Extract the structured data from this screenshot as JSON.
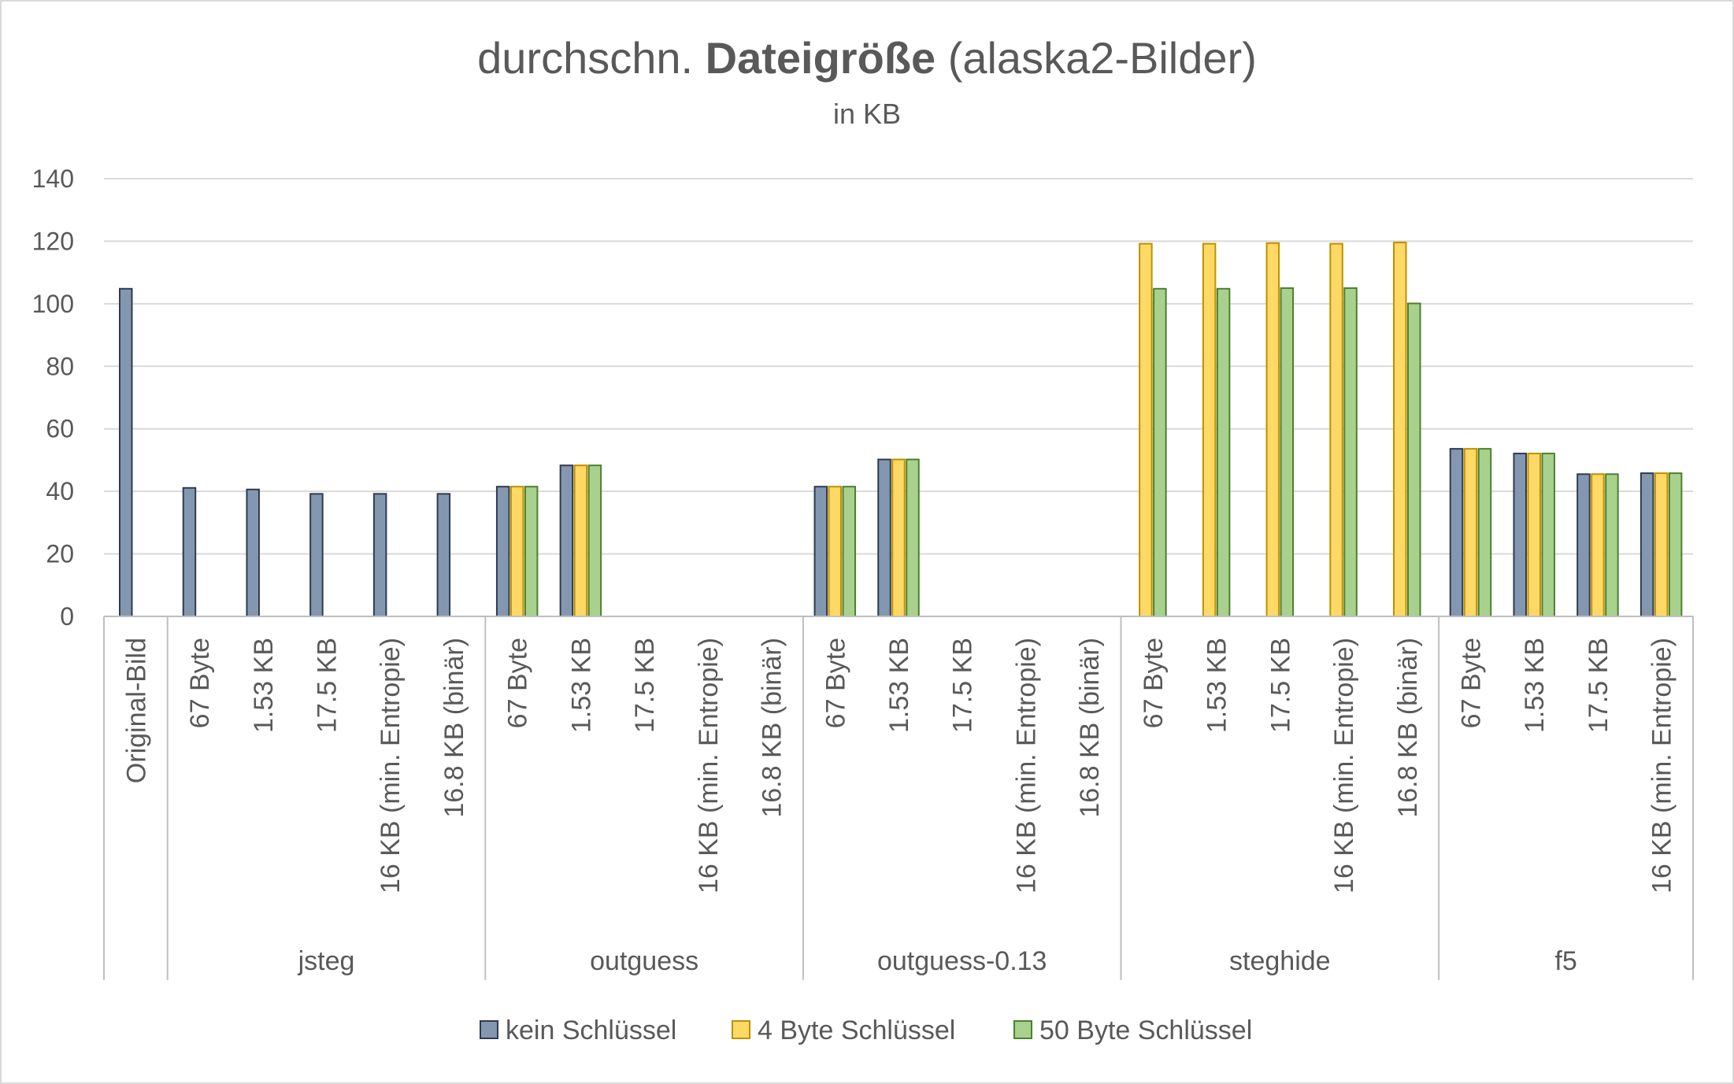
{
  "chart_data": {
    "type": "bar",
    "title_regular_1": "durchschn. ",
    "title_bold": "Dateigröße",
    "title_regular_2": " (alaska2-Bilder)",
    "subtitle": "in KB",
    "xlabel": "",
    "ylabel": "",
    "ylim": [
      0,
      140
    ],
    "yticks": [
      0,
      20,
      40,
      60,
      80,
      100,
      120,
      140
    ],
    "grid": true,
    "legend_position": "bottom",
    "colors": {
      "kein": "#8497b0",
      "kein_edge": "#2f3b4f",
      "vier": "#ffd966",
      "vier_edge": "#bf9000",
      "fuenfzig": "#a9d18e",
      "fuenfzig_edge": "#4e7f30",
      "grid": "#d9d9d9",
      "axis": "#bfbfbf",
      "text": "#595959"
    },
    "series": [
      {
        "name": "kein Schlüssel"
      },
      {
        "name": "4 Byte Schlüssel"
      },
      {
        "name": "50 Byte Schlüssel"
      }
    ],
    "groups": [
      {
        "name": "",
        "categories": [
          {
            "label": "Original-Bild",
            "values": [
              104.8,
              null,
              null
            ]
          }
        ]
      },
      {
        "name": "jsteg",
        "categories": [
          {
            "label": "67 Byte",
            "values": [
              41.1,
              null,
              null
            ]
          },
          {
            "label": "1.53 KB",
            "values": [
              40.6,
              null,
              null
            ]
          },
          {
            "label": "17.5 KB",
            "values": [
              39.2,
              null,
              null
            ]
          },
          {
            "label": "16 KB (min. Entropie)",
            "values": [
              39.2,
              null,
              null
            ]
          },
          {
            "label": "16.8 KB (binär)",
            "values": [
              39.2,
              null,
              null
            ]
          }
        ]
      },
      {
        "name": "outguess",
        "categories": [
          {
            "label": "67 Byte",
            "values": [
              41.5,
              41.5,
              41.5
            ]
          },
          {
            "label": "1.53 KB",
            "values": [
              48.3,
              48.3,
              48.3
            ]
          },
          {
            "label": "17.5 KB",
            "values": [
              null,
              null,
              null
            ]
          },
          {
            "label": "16 KB (min. Entropie)",
            "values": [
              null,
              null,
              null
            ]
          },
          {
            "label": "16.8 KB (binär)",
            "values": [
              null,
              null,
              null
            ]
          }
        ]
      },
      {
        "name": "outguess-0.13",
        "categories": [
          {
            "label": "67 Byte",
            "values": [
              41.5,
              41.5,
              41.5
            ]
          },
          {
            "label": "1.53 KB",
            "values": [
              50.2,
              50.2,
              50.2
            ]
          },
          {
            "label": "17.5 KB",
            "values": [
              null,
              null,
              null
            ]
          },
          {
            "label": "16 KB (min. Entropie)",
            "values": [
              null,
              null,
              null
            ]
          },
          {
            "label": "16.8 KB (binär)",
            "values": [
              null,
              null,
              null
            ]
          }
        ]
      },
      {
        "name": "steghide",
        "categories": [
          {
            "label": "67 Byte",
            "values": [
              null,
              119.2,
              104.8
            ]
          },
          {
            "label": "1.53 KB",
            "values": [
              null,
              119.2,
              104.8
            ]
          },
          {
            "label": "17.5 KB",
            "values": [
              null,
              119.4,
              105.0
            ]
          },
          {
            "label": "16 KB (min. Entropie)",
            "values": [
              null,
              119.2,
              105.0
            ]
          },
          {
            "label": "16.8 KB (binär)",
            "values": [
              null,
              119.6,
              100.1
            ]
          }
        ]
      },
      {
        "name": "f5",
        "categories": [
          {
            "label": "67 Byte",
            "values": [
              53.6,
              53.6,
              53.6
            ]
          },
          {
            "label": "1.53 KB",
            "values": [
              52.1,
              52.1,
              52.1
            ]
          },
          {
            "label": "17.5 KB",
            "values": [
              45.5,
              45.5,
              45.5
            ]
          },
          {
            "label": "16 KB (min. Entropie)",
            "values": [
              45.8,
              45.8,
              45.8
            ]
          }
        ]
      }
    ]
  }
}
